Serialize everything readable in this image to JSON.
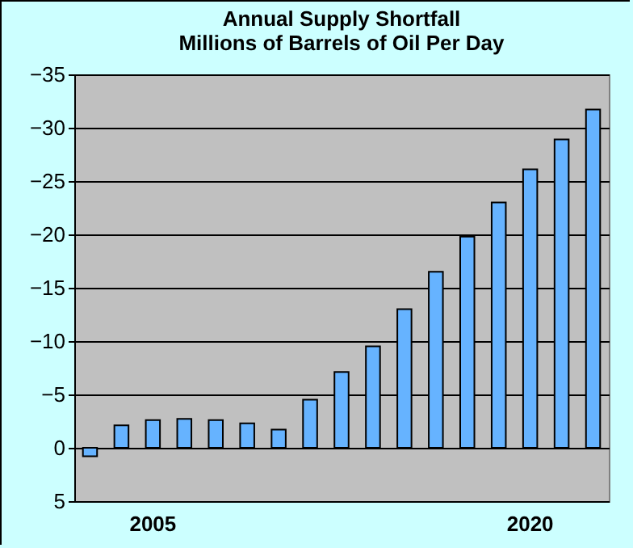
{
  "chart_data": {
    "type": "bar",
    "title": "Annual Supply Shortfall",
    "subtitle": "Millions of Barrels of Oil Per Day",
    "categories": [
      null,
      null,
      "2005",
      null,
      null,
      null,
      null,
      null,
      null,
      null,
      null,
      null,
      null,
      null,
      "2020",
      null,
      null
    ],
    "values": [
      0.8,
      -2.1,
      -2.6,
      -2.7,
      -2.6,
      -2.3,
      -1.7,
      -4.5,
      -7.1,
      -9.5,
      -13.0,
      -16.5,
      -19.8,
      -23.0,
      -26.1,
      -28.9,
      -31.7
    ],
    "color": "#66b3ff",
    "ylim": [
      5,
      -35
    ],
    "yticks": [
      5,
      0,
      -5,
      -10,
      -15,
      -20,
      -25,
      -30,
      -35
    ],
    "grid": "y"
  }
}
